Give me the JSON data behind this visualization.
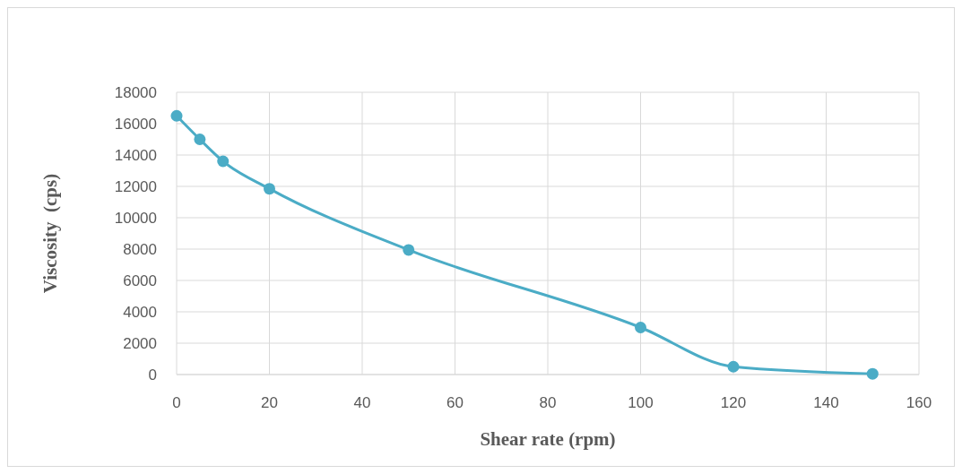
{
  "chart_data": {
    "type": "line",
    "xlabel": "Shear rate (rpm)",
    "ylabel": "Viscosity  (cps)",
    "x": [
      0,
      5,
      10,
      20,
      50,
      100,
      120,
      150
    ],
    "series": [
      {
        "color": "#4bacc6",
        "values": [
          16500,
          15000,
          13600,
          11850,
          7950,
          3000,
          500,
          50
        ]
      }
    ],
    "xlim": [
      0,
      160
    ],
    "xticks": [
      0,
      20,
      40,
      60,
      80,
      100,
      120,
      140,
      160
    ],
    "ylim": [
      0,
      18000
    ],
    "yticks": [
      0,
      2000,
      4000,
      6000,
      8000,
      10000,
      12000,
      14000,
      16000,
      18000
    ],
    "grid": true,
    "marker": "circle",
    "line_style": "solid"
  }
}
